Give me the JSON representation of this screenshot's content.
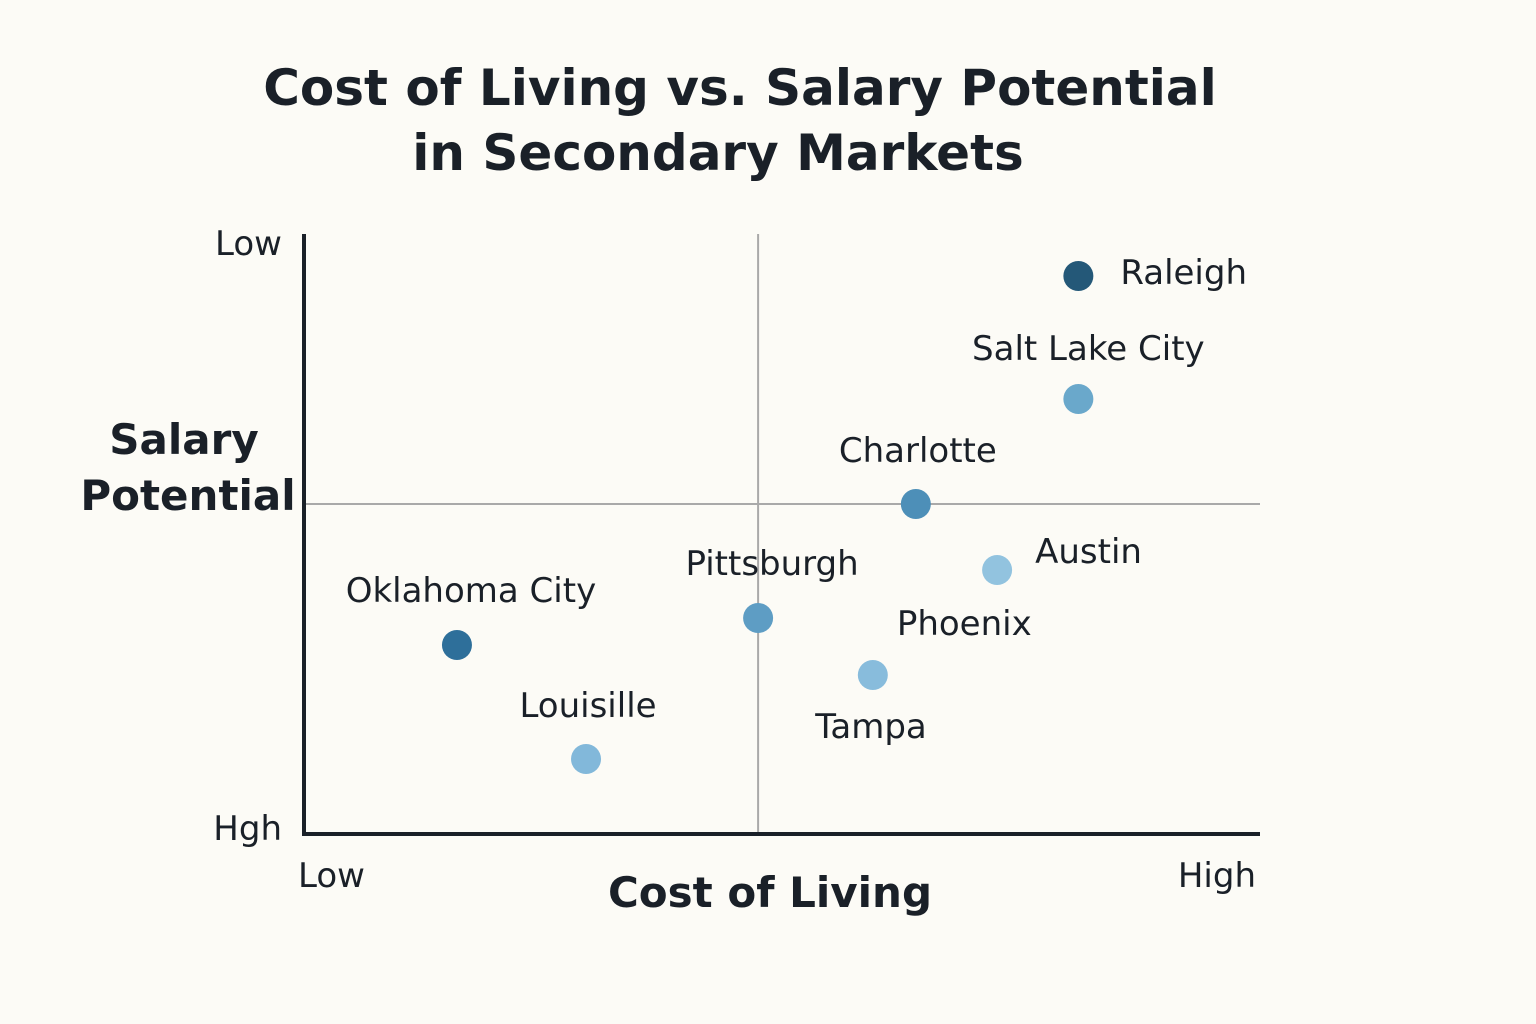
{
  "chart_data": {
    "type": "scatter",
    "title": "Cost of Living vs. Salary Potential",
    "subtitle": "in Secondary Markets",
    "xlabel": "Cost of Living",
    "ylabel": [
      "Salary",
      "Potential"
    ],
    "x_ticks": [
      "Low",
      "High"
    ],
    "y_ticks": [
      "Low",
      "Hgh"
    ],
    "xlim": [
      0,
      10
    ],
    "ylim": [
      0,
      10
    ],
    "grid": false,
    "dividers": {
      "x": 4.75,
      "y": 5.5
    },
    "points": [
      {
        "label": "Raleigh",
        "x": 8.1,
        "y": 9.3,
        "color": "#245878"
      },
      {
        "label": "Salt Lake City",
        "x": 8.1,
        "y": 7.25,
        "color": "#6aa8cb"
      },
      {
        "label": "Charlotte",
        "x": 6.4,
        "y": 5.5,
        "color": "#4d8fb8"
      },
      {
        "label": "Austin",
        "x": 7.25,
        "y": 4.4,
        "color": "#92c3df"
      },
      {
        "label": "Pittsburgh",
        "x": 4.75,
        "y": 3.6,
        "color": "#5e9dc4"
      },
      {
        "label": "Phoenix",
        "x": 5.95,
        "y": 2.65,
        "color": "#88bcdc"
      },
      {
        "label": "Oklahoma City",
        "x": 1.6,
        "y": 3.15,
        "color": "#2e6f9a"
      },
      {
        "label": "Louisille",
        "x": 2.95,
        "y": 1.25,
        "color": "#82b8da"
      }
    ],
    "extra_labels": [
      "Tampa"
    ]
  }
}
